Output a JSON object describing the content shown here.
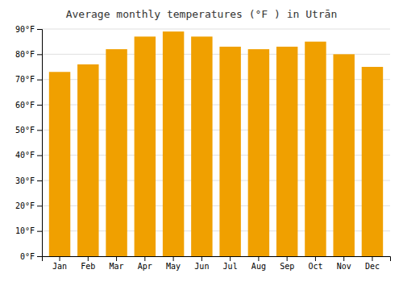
{
  "chart_data": {
    "type": "bar",
    "title": "Average monthly temperatures (°F ) in Utrān",
    "categories": [
      "Jan",
      "Feb",
      "Mar",
      "Apr",
      "May",
      "Jun",
      "Jul",
      "Aug",
      "Sep",
      "Oct",
      "Nov",
      "Dec"
    ],
    "values": [
      73,
      76,
      82,
      87,
      89,
      87,
      83,
      82,
      83,
      85,
      80,
      75
    ],
    "color": "#F0A000",
    "ylim": [
      0,
      90
    ],
    "yticks": [
      {
        "value": 0,
        "label": "0°F"
      },
      {
        "value": 10,
        "label": "10°F"
      },
      {
        "value": 20,
        "label": "20°F"
      },
      {
        "value": 30,
        "label": "30°F"
      },
      {
        "value": 40,
        "label": "40°F"
      },
      {
        "value": 50,
        "label": "50°F"
      },
      {
        "value": 60,
        "label": "60°F"
      },
      {
        "value": 70,
        "label": "70°F"
      },
      {
        "value": 80,
        "label": "80°F"
      },
      {
        "value": 90,
        "label": "90°F"
      }
    ],
    "grid": true
  }
}
